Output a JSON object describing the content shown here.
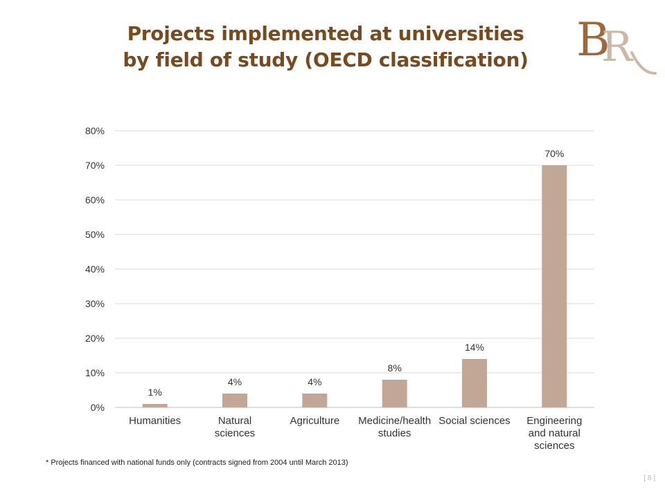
{
  "slide": {
    "title_line1": "Projects implemented at universities",
    "title_line2": "by field of study (OECD classification)",
    "footnote": "* Projects financed with national funds only (contracts signed from 2004 until March 2013)",
    "page_number": "[ 8 ]",
    "logo_text": "BR"
  },
  "colors": {
    "title": "#7a4a1d",
    "bar": "#c2a796",
    "grid": "#d9d9d9",
    "logo_primary": "#9a6a3e",
    "logo_secondary": "#cdb8a6"
  },
  "chart_data": {
    "type": "bar",
    "categories": [
      [
        "Humanities"
      ],
      [
        "Natural",
        "sciences"
      ],
      [
        "Agriculture"
      ],
      [
        "Medicine/health",
        "studies"
      ],
      [
        "Social sciences"
      ],
      [
        "Engineering",
        "and natural",
        "sciences"
      ]
    ],
    "values": [
      1,
      4,
      4,
      8,
      14,
      70
    ],
    "data_labels": [
      "1%",
      "4%",
      "4%",
      "8%",
      "14%",
      "70%"
    ],
    "y_ticks": [
      "0%",
      "10%",
      "20%",
      "30%",
      "40%",
      "50%",
      "60%",
      "70%",
      "80%"
    ],
    "ylim": [
      0,
      80
    ],
    "grid": true,
    "legend": "none"
  }
}
